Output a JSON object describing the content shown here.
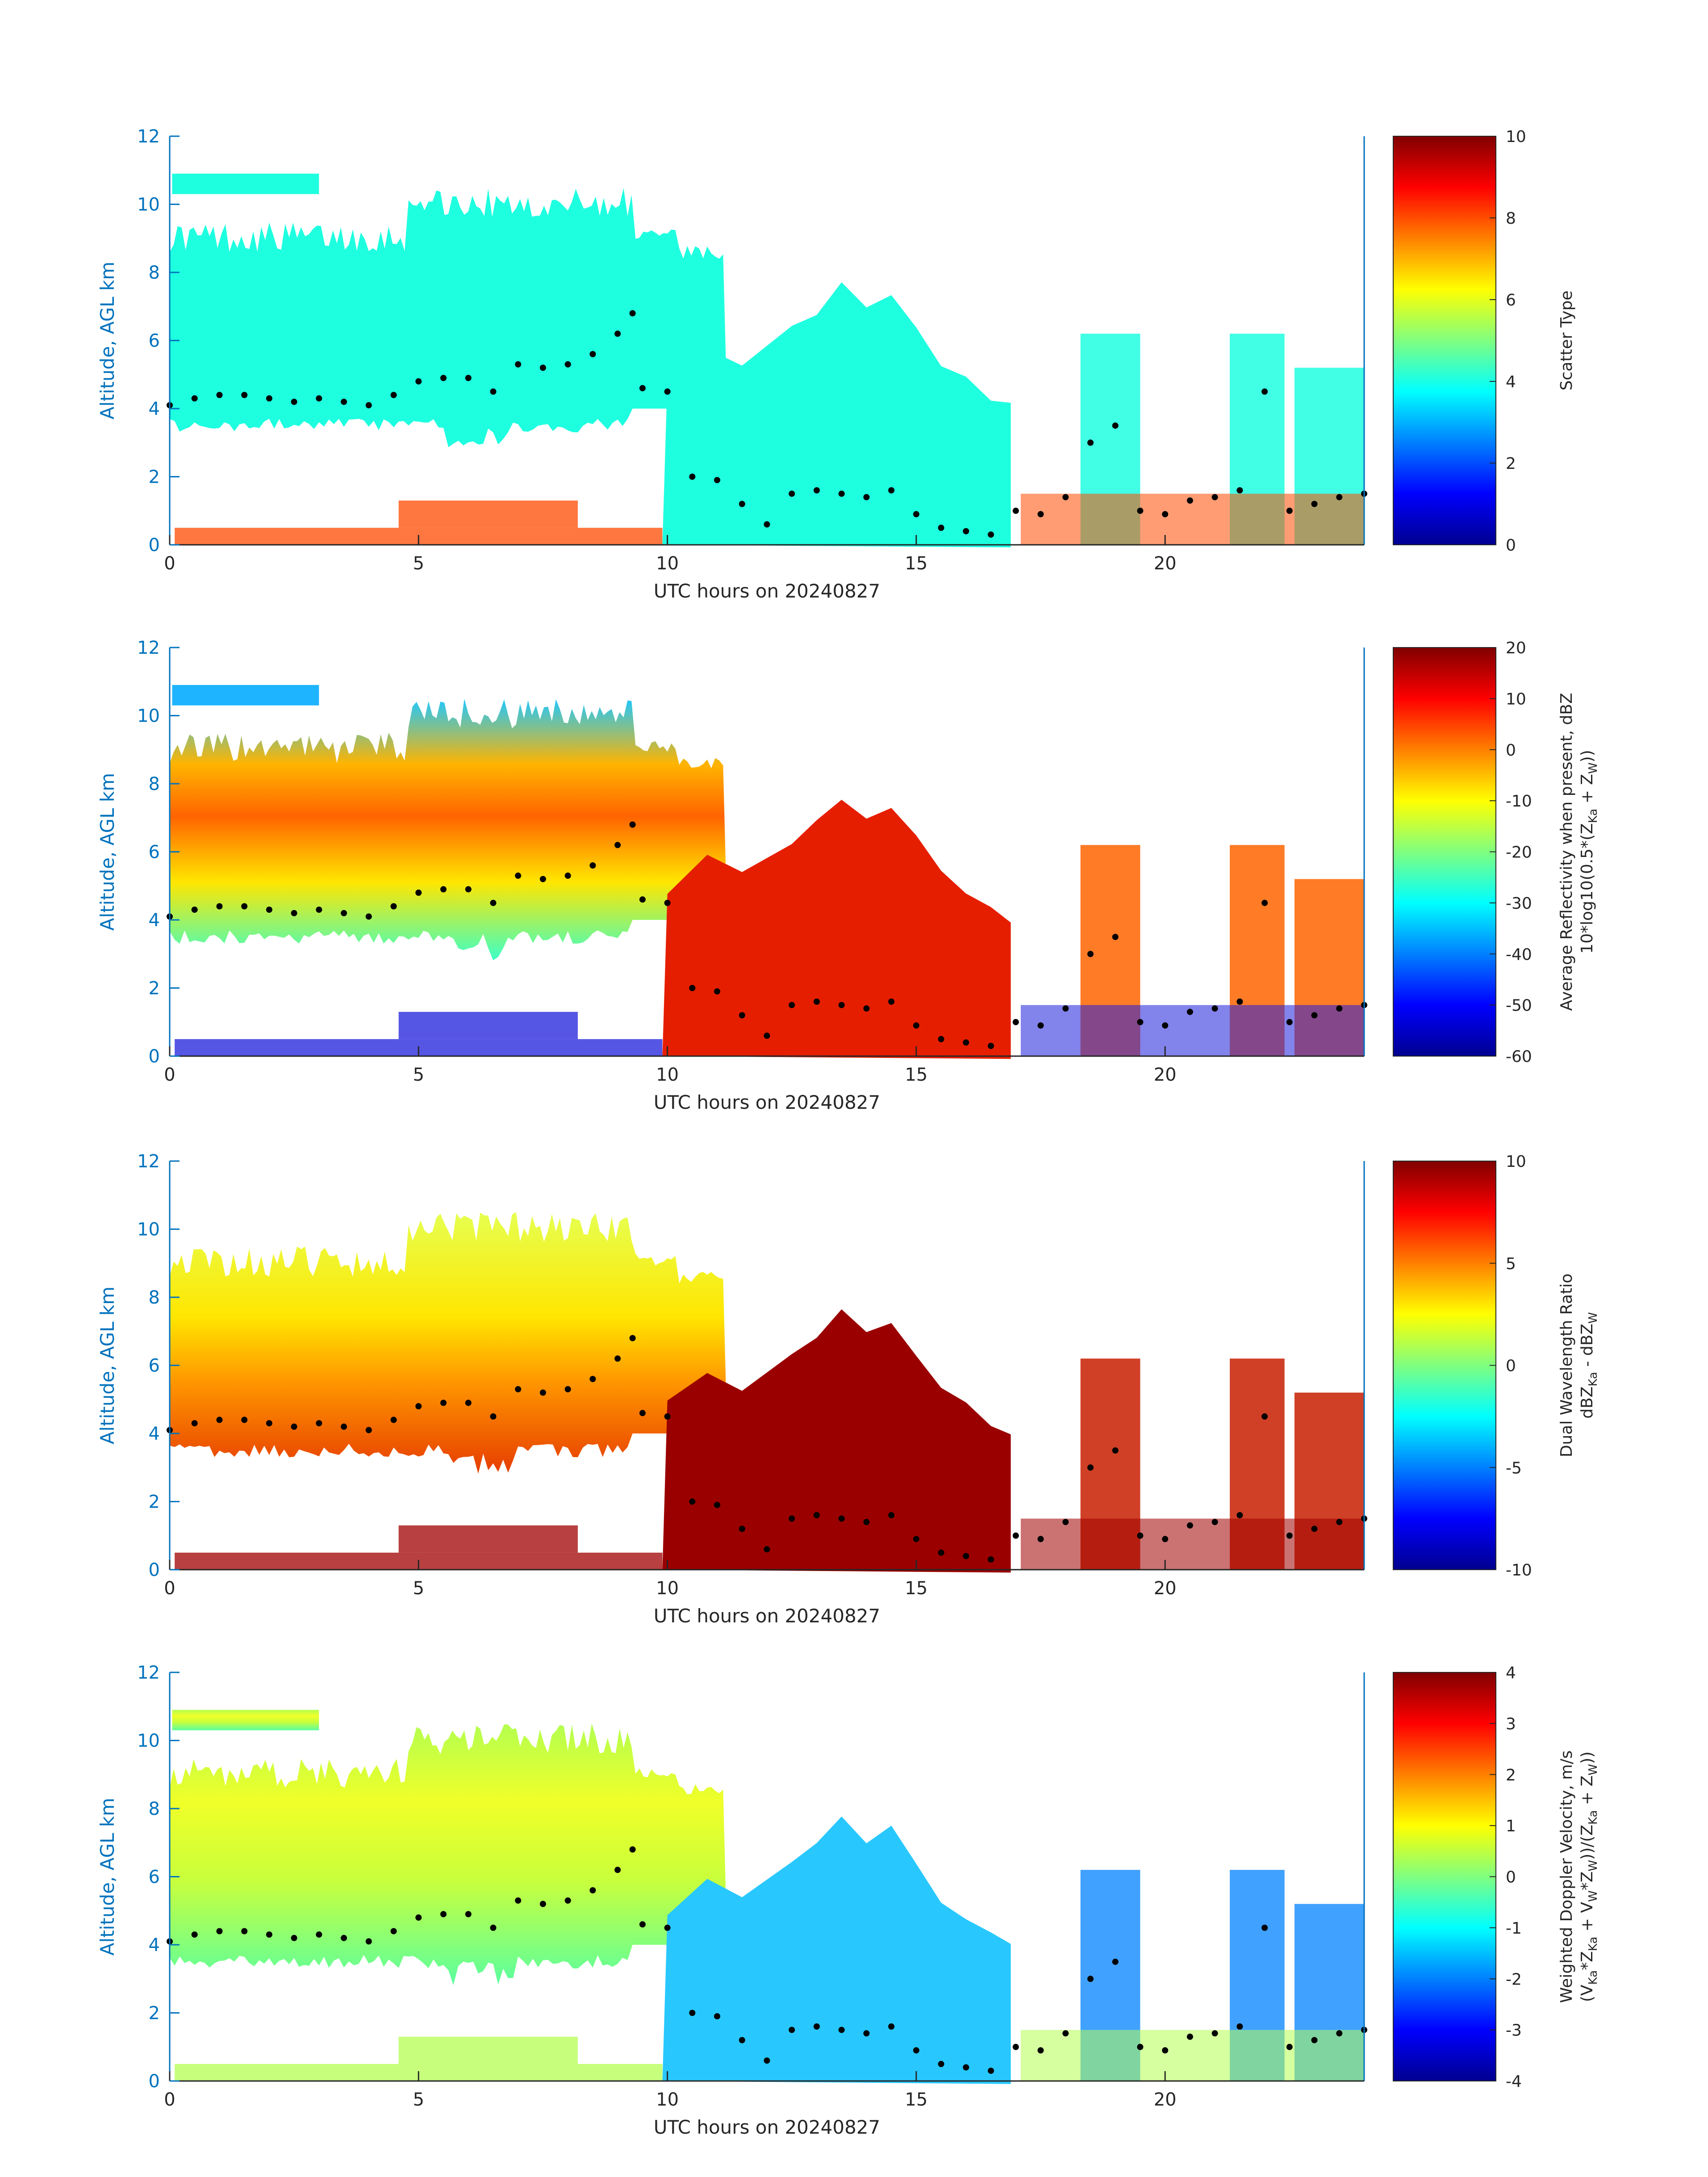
{
  "colors": {
    "axis_blue": "#0072BD",
    "text_dark": "#262626",
    "colormap": "jet",
    "dots": "#000000"
  },
  "chart_data": [
    {
      "type": "heatmap",
      "xlabel": "UTC hours on 20240827",
      "ylabel": "Altitude, AGL km",
      "xlim": [
        0,
        24
      ],
      "ylim": [
        0,
        12
      ],
      "xticks": [
        "0",
        "5",
        "10",
        "15",
        "20"
      ],
      "yticks": [
        "0",
        "2",
        "4",
        "6",
        "8",
        "10",
        "12"
      ],
      "colorbar": {
        "label_lines": [
          "Scatter Type"
        ],
        "range": [
          0,
          10
        ],
        "ticks": [
          "10",
          "8",
          "6",
          "4",
          "2",
          "0"
        ]
      },
      "field_description": "Scatter type 4 (cyan) throughout cloud, type 8 (orange) near surface",
      "dominant_value_cloud": 4,
      "dominant_value_low": 8
    },
    {
      "type": "heatmap",
      "xlabel": "UTC hours on 20240827",
      "ylabel": "Altitude, AGL km",
      "xlim": [
        0,
        24
      ],
      "ylim": [
        0,
        12
      ],
      "xticks": [
        "0",
        "5",
        "10",
        "15",
        "20"
      ],
      "yticks": [
        "0",
        "2",
        "4",
        "6",
        "8",
        "10",
        "12"
      ],
      "colorbar": {
        "label_lines": [
          "Average Reflectivity when present, dBZ",
          "10*log10(0.5*(Z",
          "Ka",
          " + Z",
          "W",
          "))"
        ],
        "range": [
          -60,
          20
        ],
        "ticks": [
          "20",
          "10",
          "0",
          "-10",
          "-20",
          "-30",
          "-40",
          "-50",
          "-60"
        ]
      }
    },
    {
      "type": "heatmap",
      "xlabel": "UTC hours on 20240827",
      "ylabel": "Altitude, AGL km",
      "xlim": [
        0,
        24
      ],
      "ylim": [
        0,
        12
      ],
      "xticks": [
        "0",
        "5",
        "10",
        "15",
        "20"
      ],
      "yticks": [
        "0",
        "2",
        "4",
        "6",
        "8",
        "10",
        "12"
      ],
      "colorbar": {
        "label_lines": [
          "Dual Wavelength Ratio",
          "dBZ",
          "Ka",
          " - dBZ",
          "W"
        ],
        "range": [
          -10,
          10
        ],
        "ticks": [
          "10",
          "5",
          "0",
          "-5",
          "-10"
        ]
      }
    },
    {
      "type": "heatmap",
      "xlabel": "UTC hours on 20240827",
      "ylabel": "Altitude, AGL km",
      "xlim": [
        0,
        24
      ],
      "ylim": [
        0,
        12
      ],
      "xticks": [
        "0",
        "5",
        "10",
        "15",
        "20"
      ],
      "yticks": [
        "0",
        "2",
        "4",
        "6",
        "8",
        "10",
        "12"
      ],
      "colorbar": {
        "label_lines": [
          "Weighted Doppler Velocity, m/s",
          "(V",
          "Ka",
          "*Z",
          "Ka",
          " + V",
          "W",
          "*Z",
          "W",
          "))/(Z",
          "Ka",
          " + Z",
          "W",
          "))"
        ],
        "range": [
          -4,
          4
        ],
        "ticks": [
          "4",
          "3",
          "2",
          "1",
          "0",
          "-1",
          "-2",
          "-3",
          "-4"
        ]
      }
    }
  ],
  "melting_layer_points": {
    "description": "black dot series plotted on every panel (hour, km)",
    "x": [
      0.0,
      0.5,
      1.0,
      1.5,
      2.0,
      2.5,
      3.0,
      3.5,
      4.0,
      4.5,
      5.0,
      5.5,
      6.0,
      6.5,
      7.0,
      7.5,
      8.0,
      8.5,
      9.0,
      9.3,
      9.5,
      10.0,
      10.5,
      11.0,
      11.5,
      12.0,
      12.5,
      13.0,
      13.5,
      14.0,
      14.5,
      15.0,
      15.5,
      16.0,
      16.5,
      17.0,
      17.5,
      18.0,
      18.5,
      19.0,
      19.5,
      20.0,
      20.5,
      21.0,
      21.5,
      22.0,
      22.5,
      23.0,
      23.5,
      24.0
    ],
    "y": [
      4.1,
      4.3,
      4.4,
      4.4,
      4.3,
      4.2,
      4.3,
      4.2,
      4.1,
      4.4,
      4.8,
      4.9,
      4.9,
      4.5,
      5.3,
      5.2,
      5.3,
      5.6,
      6.2,
      6.8,
      4.6,
      4.5,
      2.0,
      1.9,
      1.2,
      0.6,
      1.5,
      1.6,
      1.5,
      1.4,
      1.6,
      0.9,
      0.5,
      0.4,
      0.3,
      1.0,
      0.9,
      1.4,
      3.0,
      3.5,
      1.0,
      0.9,
      1.3,
      1.4,
      1.6,
      4.5,
      1.0,
      1.2,
      1.4,
      1.5
    ]
  }
}
